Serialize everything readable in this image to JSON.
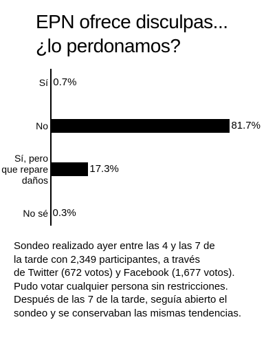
{
  "chart_data": {
    "type": "bar",
    "title": "EPN ofrece disculpas...\n¿lo perdonamos?",
    "categories": [
      "Sí",
      "No",
      "Sí, pero\nque repare\ndaños",
      "No sé"
    ],
    "values": [
      0.7,
      81.7,
      17.3,
      0.3
    ],
    "value_labels": [
      "0.7%",
      "81.7%",
      "17.3%",
      "0.3%"
    ],
    "color": "#000000",
    "note": "Sondeo realizado ayer entre las 4 y las 7 de\nla tarde con 2,349 participantes, a través\nde Twitter (672 votos) y Facebook (1,677 votos).\nPudo votar cualquier persona sin restricciones.\nDespués de las 7 de la tarde, seguía abierto el\nsondeo y se conservaban las mismas tendencias."
  }
}
